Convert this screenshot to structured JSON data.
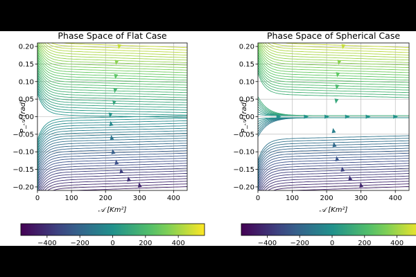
{
  "chart_data": [
    {
      "type": "streamplot",
      "title": "Phase Space of Flat Case",
      "xlabel": "𝒜 [Km²]",
      "ylabel": "P_𝒜 [rad]",
      "xlim": [
        0,
        440
      ],
      "ylim": [
        -0.21,
        0.21
      ],
      "xticks": [
        0,
        100,
        200,
        300,
        400
      ],
      "xtick_labels": [
        "0",
        "100",
        "200",
        "300",
        "400"
      ],
      "yticks": [
        0.2,
        0.15,
        0.1,
        0.05,
        0.0,
        -0.05,
        -0.1,
        -0.15,
        -0.2
      ],
      "ytick_labels": [
        "0.20",
        "0.15",
        "0.10",
        "0.05",
        "0.00",
        "−0.05",
        "−0.10",
        "−0.15",
        "−0.20"
      ],
      "grid": true,
      "separatrix_at_p0": false,
      "turning_curve": [
        [
          248,
          0.205
        ],
        [
          235,
          0.15
        ],
        [
          232,
          0.1
        ],
        [
          226,
          0.05
        ],
        [
          212,
          0.0
        ],
        [
          220,
          -0.05
        ],
        [
          222,
          -0.1
        ],
        [
          240,
          -0.15
        ],
        [
          268,
          -0.18
        ],
        [
          305,
          -0.2
        ],
        [
          340,
          -0.21
        ]
      ],
      "arrow_points": [
        [
          240,
          0.2
        ],
        [
          232,
          0.155
        ],
        [
          230,
          0.115
        ],
        [
          228,
          0.075
        ],
        [
          225,
          0.04
        ],
        [
          214,
          0.005
        ],
        [
          216,
          -0.02
        ],
        [
          218,
          -0.06
        ],
        [
          222,
          -0.1
        ],
        [
          232,
          -0.13
        ],
        [
          246,
          -0.155
        ],
        [
          268,
          -0.178
        ],
        [
          300,
          -0.195
        ]
      ]
    },
    {
      "type": "streamplot",
      "title": "Phase Space of Spherical Case",
      "xlabel": "𝒜 [Km²]",
      "ylabel": "P_𝒜 [rad]",
      "xlim": [
        0,
        440
      ],
      "ylim": [
        -0.21,
        0.21
      ],
      "xticks": [
        0,
        100,
        200,
        300,
        400
      ],
      "xtick_labels": [
        "0",
        "100",
        "200",
        "300",
        "400"
      ],
      "yticks": [
        0.2,
        0.15,
        0.1,
        0.05,
        0.0,
        -0.05,
        -0.1,
        -0.15,
        -0.2
      ],
      "ytick_labels": [
        "0.20",
        "0.15",
        "0.10",
        "0.05",
        "0.00",
        "−0.05",
        "−0.10",
        "−0.15",
        "−0.20"
      ],
      "grid": true,
      "separatrix_at_p0": true,
      "turning_curve": [
        [
          255,
          0.205
        ],
        [
          240,
          0.15
        ],
        [
          232,
          0.1
        ],
        [
          228,
          0.05
        ],
        [
          232,
          0.0
        ],
        [
          220,
          -0.05
        ],
        [
          228,
          -0.1
        ],
        [
          248,
          -0.15
        ],
        [
          270,
          -0.18
        ],
        [
          300,
          -0.2
        ],
        [
          335,
          -0.21
        ]
      ],
      "arrow_points": [
        [
          248,
          0.2
        ],
        [
          236,
          0.155
        ],
        [
          232,
          0.12
        ],
        [
          230,
          0.085
        ],
        [
          228,
          0.045
        ],
        [
          60,
          0.0
        ],
        [
          140,
          0.0
        ],
        [
          200,
          0.0
        ],
        [
          260,
          0.0
        ],
        [
          320,
          0.0
        ],
        [
          400,
          0.0
        ],
        [
          220,
          -0.04
        ],
        [
          222,
          -0.08
        ],
        [
          230,
          -0.12
        ],
        [
          246,
          -0.15
        ],
        [
          268,
          -0.175
        ],
        [
          300,
          -0.195
        ]
      ]
    }
  ],
  "colorbars": [
    {
      "min": -560,
      "max": 560,
      "ticks": [
        -400,
        -200,
        0,
        200,
        400
      ],
      "tick_labels": [
        "−400",
        "−200",
        "0",
        "200",
        "400"
      ]
    },
    {
      "min": -560,
      "max": 560,
      "ticks": [
        -400,
        -200,
        0,
        200,
        400
      ],
      "tick_labels": [
        "−400",
        "−200",
        "0",
        "200",
        "400"
      ]
    }
  ],
  "colormap": "viridis"
}
